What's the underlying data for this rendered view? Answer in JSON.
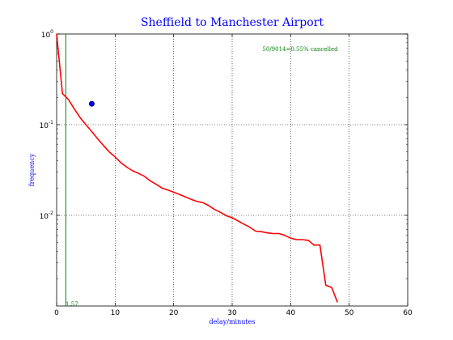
{
  "chart_data": {
    "type": "line",
    "title": "Sheffield to Manchester Airport",
    "xlabel": "delay/minutes",
    "ylabel": "frequency",
    "y_scale": "log",
    "xlim": [
      0,
      60
    ],
    "ylim": [
      0.001,
      1.0
    ],
    "x_ticks": [
      0,
      10,
      20,
      30,
      40,
      50,
      60
    ],
    "x_tick_labels": [
      "0",
      "10",
      "20",
      "30",
      "40",
      "50",
      "60"
    ],
    "y_ticks": [
      0.01,
      0.1,
      1.0
    ],
    "y_tick_labels": [
      {
        "base": "10",
        "exp": "-2"
      },
      {
        "base": "10",
        "exp": "-1"
      },
      {
        "base": "10",
        "exp": "0"
      }
    ],
    "grid": true,
    "annotation": "50/9014=0.55% cancelled",
    "series": [
      {
        "color": "#ff0000",
        "x": [
          0,
          1,
          2,
          3,
          4,
          5,
          6,
          7,
          8,
          9,
          10,
          11,
          12,
          13,
          14,
          15,
          16,
          17,
          18,
          19,
          20,
          21,
          22,
          23,
          24,
          25,
          26,
          27,
          28,
          29,
          30,
          31,
          32,
          33,
          34,
          35,
          36,
          37,
          38,
          39,
          40,
          41,
          42,
          43,
          44,
          45,
          46,
          47,
          48
        ],
        "y": [
          1.0,
          0.22,
          0.19,
          0.15,
          0.12,
          0.1,
          0.084,
          0.07,
          0.059,
          0.05,
          0.044,
          0.038,
          0.034,
          0.031,
          0.029,
          0.027,
          0.024,
          0.022,
          0.02,
          0.019,
          0.018,
          0.017,
          0.016,
          0.015,
          0.0142,
          0.0138,
          0.0128,
          0.0116,
          0.0108,
          0.0099,
          0.0094,
          0.0087,
          0.008,
          0.0074,
          0.0067,
          0.0066,
          0.0064,
          0.0063,
          0.0063,
          0.006,
          0.0056,
          0.0054,
          0.0054,
          0.0053,
          0.0047,
          0.0047,
          0.0017,
          0.0016,
          0.0011
        ]
      }
    ],
    "vline": {
      "x": 1.57,
      "label": "1.57",
      "color": "#008000"
    },
    "marker": {
      "x": 6,
      "y": 0.17,
      "color": "#0000ff"
    }
  }
}
